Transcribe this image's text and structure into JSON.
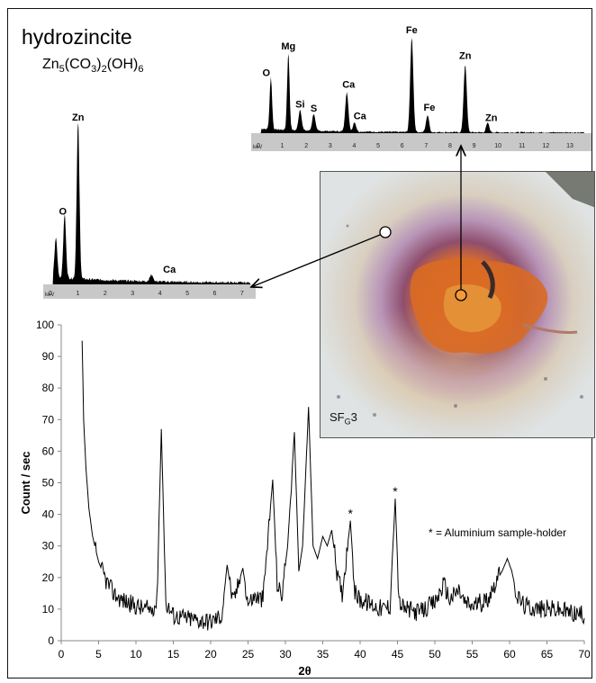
{
  "figure": {
    "mineral_name": "hydrozincite",
    "formula_parts": [
      "Zn",
      "5",
      "(CO",
      "3",
      ")",
      "2",
      "(OH)",
      "6"
    ],
    "sample_label_main": "SF",
    "sample_label_sub": "G",
    "sample_label_tail": "3",
    "annotation": "* = Aluminium sample-holder",
    "asterisk_mark": "*"
  },
  "eds_top": {
    "axis_unit": "keV",
    "ticks": [
      "0",
      "1",
      "2",
      "3",
      "4",
      "5",
      "6",
      "7",
      "8",
      "9",
      "10",
      "11",
      "12",
      "13"
    ],
    "peaks": [
      {
        "label": "O",
        "energy": 0.52,
        "height": 0.55
      },
      {
        "label": "Mg",
        "energy": 1.25,
        "height": 0.82
      },
      {
        "label": "Si",
        "energy": 1.74,
        "height": 0.22
      },
      {
        "label": "S",
        "energy": 2.31,
        "height": 0.18
      },
      {
        "label": "Ca",
        "energy": 3.69,
        "height": 0.42
      },
      {
        "label": "Ca",
        "energy": 4.01,
        "height": 0.1
      },
      {
        "label": "Fe",
        "energy": 6.4,
        "height": 1.0
      },
      {
        "label": "Fe",
        "energy": 7.06,
        "height": 0.18
      },
      {
        "label": "Zn",
        "energy": 8.63,
        "height": 0.72
      },
      {
        "label": "Zn",
        "energy": 9.57,
        "height": 0.1
      }
    ]
  },
  "eds_left": {
    "axis_unit": "keV",
    "ticks": [
      "0",
      "1",
      "2",
      "3",
      "4",
      "5",
      "6",
      "7"
    ],
    "peaks": [
      {
        "label": "",
        "energy": 0.2,
        "height": 0.25
      },
      {
        "label": "O",
        "energy": 0.52,
        "height": 0.4
      },
      {
        "label": "Zn",
        "energy": 1.01,
        "height": 1.0
      },
      {
        "label": "Ca",
        "energy": 3.69,
        "height": 0.04
      }
    ]
  },
  "colors": {
    "orange_marker": "#f59a3a",
    "white_marker": "#ffffff",
    "axis_bar": "#c8c8c8",
    "spectrum": "#000000"
  },
  "chart_data": {
    "type": "line",
    "xlabel": "2θ",
    "ylabel": "Count / sec",
    "xlim": [
      0,
      70
    ],
    "ylim": [
      0,
      100
    ],
    "xticks": [
      "0",
      "5",
      "10",
      "15",
      "20",
      "25",
      "30",
      "35",
      "40",
      "45",
      "50",
      "55",
      "60",
      "65",
      "70"
    ],
    "yticks": [
      "0",
      "10",
      "20",
      "30",
      "40",
      "50",
      "60",
      "70",
      "80",
      "90",
      "100"
    ],
    "grid": false,
    "baseline": [
      [
        2.8,
        95
      ],
      [
        3.0,
        70
      ],
      [
        3.3,
        55
      ],
      [
        3.7,
        42
      ],
      [
        4.2,
        33
      ],
      [
        5,
        25
      ],
      [
        6,
        19
      ],
      [
        7,
        15
      ],
      [
        8,
        13
      ],
      [
        9,
        12
      ],
      [
        10,
        11
      ],
      [
        11,
        10
      ],
      [
        12,
        10
      ],
      [
        12.8,
        12
      ],
      [
        13.4,
        67
      ],
      [
        14.0,
        12
      ],
      [
        15,
        8
      ],
      [
        17,
        7
      ],
      [
        20,
        6
      ],
      [
        21.5,
        8
      ],
      [
        22.2,
        24
      ],
      [
        23,
        12
      ],
      [
        24.3,
        23
      ],
      [
        25,
        12
      ],
      [
        26,
        14
      ],
      [
        27,
        13
      ],
      [
        28.3,
        51
      ],
      [
        28.9,
        18
      ],
      [
        29.5,
        14
      ],
      [
        30.3,
        30
      ],
      [
        31.2,
        66
      ],
      [
        31.8,
        22
      ],
      [
        32.3,
        30
      ],
      [
        33.1,
        74
      ],
      [
        33.7,
        30
      ],
      [
        34.3,
        26
      ],
      [
        35,
        33
      ],
      [
        35.6,
        30
      ],
      [
        36.2,
        35
      ],
      [
        37,
        20
      ],
      [
        37.6,
        15
      ],
      [
        38.7,
        38
      ],
      [
        39.3,
        15
      ],
      [
        40,
        13
      ],
      [
        41,
        12
      ],
      [
        42,
        11
      ],
      [
        43,
        10
      ],
      [
        44,
        11
      ],
      [
        44.7,
        45
      ],
      [
        45.2,
        12
      ],
      [
        46,
        10
      ],
      [
        48,
        9
      ],
      [
        50,
        12
      ],
      [
        51.2,
        18
      ],
      [
        52,
        13
      ],
      [
        53.2,
        16
      ],
      [
        54,
        12
      ],
      [
        55,
        11
      ],
      [
        56,
        12
      ],
      [
        57,
        13
      ],
      [
        58,
        18
      ],
      [
        59,
        22
      ],
      [
        59.7,
        26
      ],
      [
        60.3,
        22
      ],
      [
        61,
        14
      ],
      [
        62,
        11
      ],
      [
        64,
        10
      ],
      [
        66,
        10
      ],
      [
        68,
        9
      ],
      [
        70,
        8
      ]
    ],
    "starred_peaks": [
      38.7,
      44.7
    ]
  }
}
